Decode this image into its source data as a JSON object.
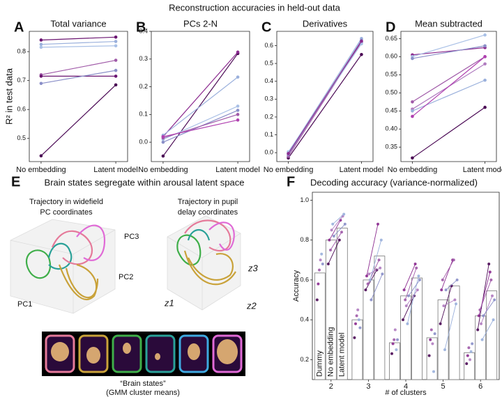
{
  "figure_title": "Reconstruction accuracies in held-out data",
  "panel_e": {
    "label": "E",
    "title": "Brain states segregate within arousal latent space",
    "left_caption": [
      "Trajectory in widefield",
      "PC coordinates"
    ],
    "right_caption": [
      "Trajectory in pupil",
      "delay coordinates"
    ],
    "left_axes": [
      "PC1",
      "PC2",
      "PC3"
    ],
    "right_axes": [
      "z1",
      "z2",
      "z3"
    ],
    "strip_caption": [
      "“Brain states”",
      "(GMM cluster means)"
    ]
  },
  "chart_data": [
    {
      "type": "line",
      "label": "A",
      "title": "Total variance",
      "ylabel": "R² in test data",
      "categories": [
        "No embedding",
        "Latent model"
      ],
      "ylim": [
        0.42,
        0.87
      ],
      "yticks": [
        0.5,
        0.6,
        0.7,
        0.8
      ],
      "series": [
        {
          "color": "#6a1470",
          "values": [
            0.84,
            0.85
          ]
        },
        {
          "color": "#9ab0dc",
          "values": [
            0.825,
            0.835
          ]
        },
        {
          "color": "#a9c0e6",
          "values": [
            0.815,
            0.82
          ]
        },
        {
          "color": "#a05aa8",
          "values": [
            0.72,
            0.77
          ]
        },
        {
          "color": "#6a1470",
          "values": [
            0.715,
            0.715
          ]
        },
        {
          "color": "#8a8fc8",
          "values": [
            0.69,
            0.735
          ]
        },
        {
          "color": "#4b0a55",
          "values": [
            0.44,
            0.685
          ]
        }
      ]
    },
    {
      "type": "line",
      "label": "B",
      "title": "PCs 2-N",
      "categories": [
        "No embedding",
        "Latent model"
      ],
      "ylim": [
        -0.07,
        0.4
      ],
      "yticks": [
        {
          "value": 0,
          "label": "0.0"
        },
        0.1,
        0.2,
        0.3,
        0.4
      ],
      "series": [
        {
          "color": "#4b0a55",
          "values": [
            -0.05,
            0.32
          ]
        },
        {
          "color": "#8b2a8f",
          "values": [
            0.02,
            0.325
          ]
        },
        {
          "color": "#9ab0dc",
          "values": [
            0.025,
            0.235
          ]
        },
        {
          "color": "#a9c0e6",
          "values": [
            0.01,
            0.13
          ]
        },
        {
          "color": "#8a8fc8",
          "values": [
            0.0,
            0.115
          ]
        },
        {
          "color": "#a05aa8",
          "values": [
            0.015,
            0.1
          ]
        },
        {
          "color": "#b040b0",
          "values": [
            0.02,
            0.08
          ]
        }
      ]
    },
    {
      "type": "line",
      "label": "C",
      "title": "Derivatives",
      "categories": [
        "No embedding",
        "Latent model"
      ],
      "ylim": [
        -0.05,
        0.68
      ],
      "yticks": [
        {
          "value": 0,
          "label": "0.0"
        },
        0.1,
        0.2,
        0.3,
        0.4,
        0.5,
        0.6
      ],
      "series": [
        {
          "color": "#4b0a55",
          "values": [
            -0.03,
            0.55
          ]
        },
        {
          "color": "#a05aa8",
          "values": [
            -0.02,
            0.62
          ]
        },
        {
          "color": "#9ab0dc",
          "values": [
            0.0,
            0.64
          ]
        },
        {
          "color": "#8a8fc8",
          "values": [
            -0.01,
            0.63
          ]
        },
        {
          "color": "#a9c0e6",
          "values": [
            0.005,
            0.61
          ]
        },
        {
          "color": "#8b2a8f",
          "values": [
            -0.005,
            0.625
          ]
        }
      ]
    },
    {
      "type": "line",
      "label": "D",
      "title": "Mean subtracted",
      "categories": [
        "No embedding",
        "Latent model"
      ],
      "ylim": [
        0.31,
        0.67
      ],
      "yticks": [
        0.35,
        {
          "value": 0.4,
          "label": "0.40"
        },
        0.45,
        {
          "value": 0.5,
          "label": "0.50"
        },
        0.55,
        {
          "value": 0.6,
          "label": "0.60"
        },
        0.65
      ],
      "series": [
        {
          "color": "#8b2a8f",
          "values": [
            0.605,
            0.625
          ]
        },
        {
          "color": "#a9c0e6",
          "values": [
            0.6,
            0.66
          ]
        },
        {
          "color": "#8a8fc8",
          "values": [
            0.595,
            0.63
          ]
        },
        {
          "color": "#a05aa8",
          "values": [
            0.475,
            0.6
          ]
        },
        {
          "color": "#b07cc0",
          "values": [
            0.455,
            0.58
          ]
        },
        {
          "color": "#9ab0dc",
          "values": [
            0.45,
            0.535
          ]
        },
        {
          "color": "#b040b0",
          "values": [
            0.435,
            0.6
          ]
        },
        {
          "color": "#4b0a55",
          "values": [
            0.32,
            0.46
          ]
        }
      ]
    },
    {
      "type": "bar",
      "label": "F",
      "title": "Decoding accuracy (variance-normalized)",
      "xlabel": "# of clusters",
      "ylabel": "Accuracy",
      "categories": [
        "2",
        "3",
        "4",
        "5",
        "6"
      ],
      "ylim": [
        0.1,
        1.04
      ],
      "yticks": [
        0.2,
        0.4,
        0.6,
        0.8,
        {
          "value": 1,
          "label": "1.0"
        }
      ],
      "series": [
        {
          "name": "Dummy",
          "color": "#ffffff",
          "values": [
            0.635,
            0.4,
            0.285,
            0.31,
            0.235
          ]
        },
        {
          "name": "No embedding",
          "color": "#ffffff",
          "values": [
            0.8,
            0.6,
            0.52,
            0.5,
            0.42
          ]
        },
        {
          "name": "Latent model",
          "color": "#ffffff",
          "values": [
            0.86,
            0.72,
            0.61,
            0.57,
            0.545
          ]
        }
      ],
      "points": [
        {
          "color": "#4b0a55",
          "values": [
            [
              0.5,
              0.31,
              0.23,
              0.22,
              0.18
            ],
            [
              0.68,
              0.55,
              0.4,
              0.38,
              0.35
            ],
            [
              0.8,
              0.65,
              0.52,
              0.57,
              0.68
            ]
          ]
        },
        {
          "color": "#8b2a8f",
          "values": [
            [
              0.58,
              0.38,
              0.28,
              0.3,
              0.22
            ],
            [
              0.8,
              0.62,
              0.55,
              0.55,
              0.42
            ],
            [
              0.9,
              0.88,
              0.68,
              0.7,
              0.64
            ]
          ]
        },
        {
          "color": "#a05aa8",
          "values": [
            [
              0.65,
              0.42,
              0.3,
              0.35,
              0.26
            ],
            [
              0.75,
              0.58,
              0.5,
              0.6,
              0.45
            ],
            [
              0.84,
              0.7,
              0.66,
              0.7,
              0.6
            ]
          ]
        },
        {
          "color": "#b07cc0",
          "values": [
            [
              0.7,
              0.45,
              0.35,
              0.28,
              0.2
            ],
            [
              0.85,
              0.63,
              0.47,
              0.47,
              0.38
            ],
            [
              0.92,
              0.66,
              0.55,
              0.5,
              0.52
            ]
          ]
        },
        {
          "color": "#9ab0dc",
          "values": [
            [
              0.73,
              0.4,
              0.25,
              0.14,
              0.24
            ],
            [
              0.88,
              0.6,
              0.38,
              0.25,
              0.3
            ],
            [
              0.93,
              0.8,
              0.62,
              0.48,
              0.4
            ]
          ]
        },
        {
          "color": "#8a8fc8",
          "values": [
            [
              0.68,
              0.36,
              0.3,
              0.33,
              0.28
            ],
            [
              0.82,
              0.5,
              0.52,
              0.55,
              0.42
            ],
            [
              0.88,
              0.63,
              0.6,
              0.6,
              0.5
            ]
          ]
        }
      ]
    }
  ]
}
